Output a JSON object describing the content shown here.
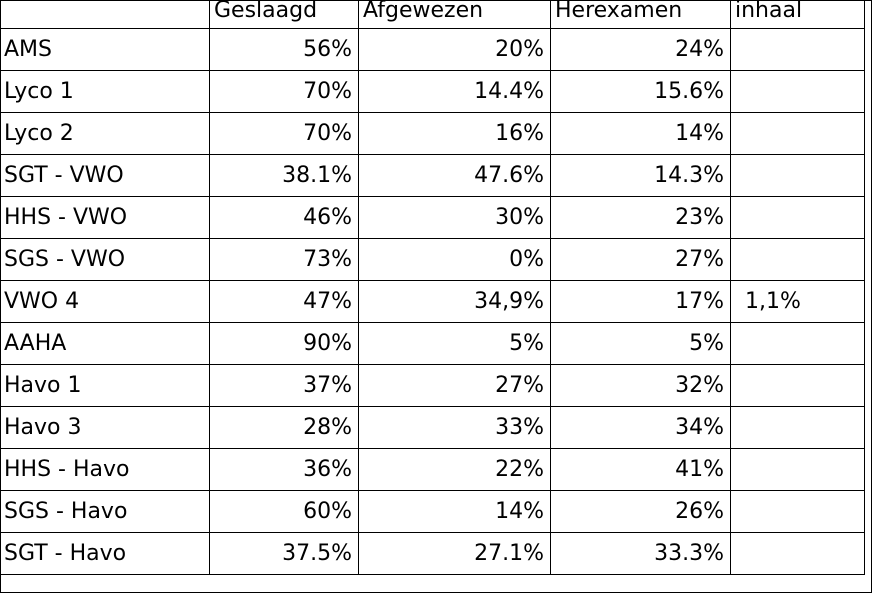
{
  "table": {
    "headers": [
      "",
      "Geslaagd",
      "Afgewezen",
      "Herexamen",
      "inhaal"
    ],
    "rows": [
      {
        "name": "AMS",
        "geslaagd": "56%",
        "afgewezen": "20%",
        "herexamen": "24%",
        "inhaal": ""
      },
      {
        "name": "Lyco 1",
        "geslaagd": "70%",
        "afgewezen": "14.4%",
        "herexamen": "15.6%",
        "inhaal": ""
      },
      {
        "name": "Lyco 2",
        "geslaagd": "70%",
        "afgewezen": "16%",
        "herexamen": "14%",
        "inhaal": ""
      },
      {
        "name": "SGT - VWO",
        "geslaagd": "38.1%",
        "afgewezen": "47.6%",
        "herexamen": "14.3%",
        "inhaal": ""
      },
      {
        "name": "HHS - VWO",
        "geslaagd": "46%",
        "afgewezen": "30%",
        "herexamen": "23%",
        "inhaal": ""
      },
      {
        "name": "SGS - VWO",
        "geslaagd": "73%",
        "afgewezen": "0%",
        "herexamen": "27%",
        "inhaal": ""
      },
      {
        "name": "VWO 4",
        "geslaagd": "47%",
        "afgewezen": "34,9%",
        "herexamen": "17%",
        "inhaal": "1,1%"
      },
      {
        "name": "AAHA",
        "geslaagd": "90%",
        "afgewezen": "5%",
        "herexamen": "5%",
        "inhaal": ""
      },
      {
        "name": "Havo 1",
        "geslaagd": "37%",
        "afgewezen": "27%",
        "herexamen": "32%",
        "inhaal": ""
      },
      {
        "name": "Havo 3",
        "geslaagd": "28%",
        "afgewezen": "33%",
        "herexamen": "34%",
        "inhaal": ""
      },
      {
        "name": "HHS - Havo",
        "geslaagd": "36%",
        "afgewezen": "22%",
        "herexamen": "41%",
        "inhaal": ""
      },
      {
        "name": "SGS - Havo",
        "geslaagd": "60%",
        "afgewezen": "14%",
        "herexamen": "26%",
        "inhaal": ""
      },
      {
        "name": "SGT - Havo",
        "geslaagd": "37.5%",
        "afgewezen": "27.1%",
        "herexamen": "33.3%",
        "inhaal": ""
      }
    ]
  }
}
